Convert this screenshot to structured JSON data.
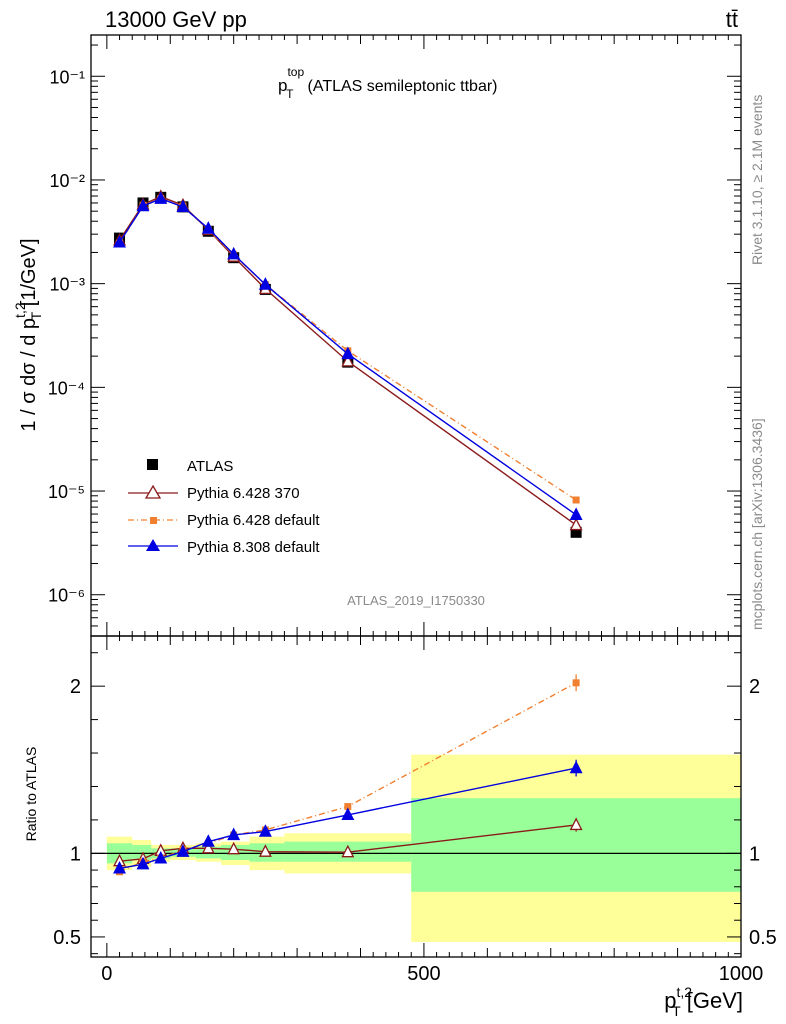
{
  "header": {
    "left": "13000 GeV pp",
    "right": "tt̄"
  },
  "side": {
    "rivet": "Rivet 3.1.10, ≥ 2.1M events",
    "mcplots": "mcplots.cern.ch [arXiv:1306.3436]"
  },
  "watermark": "ATLAS_2019_I1750330",
  "colors": {
    "atlas": "#000000",
    "p370": "#8b1a1a",
    "pdef": "#f08030",
    "p8": "#0000e0",
    "band_inner": "#99ff99",
    "band_outer": "#ffff99"
  },
  "chart_data": [
    {
      "type": "line",
      "title": "p_T^top (ATLAS semileptonic ttbar)",
      "title_main": "p",
      "title_sub": "T",
      "title_sup": "top",
      "title_rest": "(ATLAS semileptonic ttbar)",
      "ylabel": "1 / σ dσ / d p_T^{t,2} [1/GeV]",
      "ylabel_main": "1 / σ dσ / d p",
      "ylabel_sub": "T",
      "ylabel_sup": "t,2",
      "ylabel_rest": " [1/GeV]",
      "yscale": "log",
      "ylim": [
        4e-07,
        0.25
      ],
      "xlim": [
        -25,
        1000
      ],
      "ytick_labels": [
        "10⁻⁶",
        "10⁻⁵",
        "10⁻⁴",
        "10⁻³",
        "10⁻²",
        "10⁻¹"
      ],
      "ytick_values": [
        1e-06,
        1e-05,
        0.0001,
        0.001,
        0.01,
        0.1
      ],
      "x": [
        20,
        57,
        85,
        120,
        160,
        200,
        250,
        380,
        740
      ],
      "series": [
        {
          "name": "ATLAS",
          "marker": "square",
          "values": [
            0.00275,
            0.006,
            0.0068,
            0.0055,
            0.0032,
            0.00178,
            0.00088,
            0.000175,
            4e-06
          ]
        },
        {
          "name": "Pythia 6.428 370",
          "marker": "open-triangle",
          "values": [
            0.00262,
            0.0058,
            0.0069,
            0.0057,
            0.0033,
            0.00182,
            0.00089,
            0.000178,
            4.7e-06
          ]
        },
        {
          "name": "Pythia 6.428 default",
          "marker": "small-square",
          "values": [
            0.00245,
            0.0057,
            0.0066,
            0.0056,
            0.0033,
            0.0019,
            0.00098,
            0.000225,
            8.2e-06
          ]
        },
        {
          "name": "Pythia 8.308 default",
          "marker": "filled-triangle",
          "values": [
            0.0025,
            0.0056,
            0.0066,
            0.0055,
            0.0034,
            0.00192,
            0.00098,
            0.00021,
            5.9e-06
          ]
        }
      ],
      "legend_position": "lower-left",
      "legend": [
        "ATLAS",
        "Pythia 6.428 370",
        "Pythia 6.428 default",
        "Pythia 8.308 default"
      ]
    },
    {
      "type": "line",
      "ylabel": "Ratio to ATLAS",
      "xlabel": "p_T^{t,2} [GeV]",
      "xlabel_main": "p",
      "xlabel_sub": "T",
      "xlabel_sup": "t,2",
      "xlabel_rest": " [GeV]",
      "ylim": [
        0.38,
        2.3
      ],
      "xlim": [
        -25,
        1000
      ],
      "xtick_labels": [
        "0",
        "500",
        "1000"
      ],
      "xtick_values": [
        0,
        500,
        1000
      ],
      "ytick_labels": [
        "0.5",
        "1",
        "2"
      ],
      "ytick_values": [
        0.5,
        1,
        2
      ],
      "bins": [
        {
          "lo": 0,
          "hi": 40,
          "inner": [
            0.94,
            1.06
          ],
          "outer": [
            0.9,
            1.1
          ]
        },
        {
          "lo": 40,
          "hi": 70,
          "inner": [
            0.96,
            1.05
          ],
          "outer": [
            0.92,
            1.08
          ]
        },
        {
          "lo": 70,
          "hi": 100,
          "inner": [
            0.97,
            1.03
          ],
          "outer": [
            0.95,
            1.05
          ]
        },
        {
          "lo": 100,
          "hi": 140,
          "inner": [
            0.98,
            1.03
          ],
          "outer": [
            0.96,
            1.05
          ]
        },
        {
          "lo": 140,
          "hi": 180,
          "inner": [
            0.97,
            1.04
          ],
          "outer": [
            0.95,
            1.06
          ]
        },
        {
          "lo": 180,
          "hi": 225,
          "inner": [
            0.96,
            1.05
          ],
          "outer": [
            0.93,
            1.07
          ]
        },
        {
          "lo": 225,
          "hi": 280,
          "inner": [
            0.95,
            1.06
          ],
          "outer": [
            0.9,
            1.1
          ]
        },
        {
          "lo": 280,
          "hi": 480,
          "inner": [
            0.95,
            1.07
          ],
          "outer": [
            0.88,
            1.12
          ]
        },
        {
          "lo": 480,
          "hi": 1000,
          "inner": [
            0.77,
            1.33
          ],
          "outer": [
            0.47,
            1.59
          ]
        }
      ],
      "x": [
        20,
        57,
        85,
        120,
        160,
        200,
        250,
        380,
        740
      ],
      "series": [
        {
          "name": "Pythia 6.428 370",
          "values": [
            0.953,
            0.967,
            1.015,
            1.03,
            1.03,
            1.025,
            1.01,
            1.007,
            1.17
          ]
        },
        {
          "name": "Pythia 6.428 default",
          "values": [
            0.89,
            0.95,
            0.97,
            1.02,
            1.06,
            1.11,
            1.14,
            1.28,
            2.02
          ]
        },
        {
          "name": "Pythia 8.308 default",
          "values": [
            0.91,
            0.935,
            0.97,
            1.01,
            1.07,
            1.11,
            1.13,
            1.23,
            1.51
          ]
        }
      ],
      "error_bars_last": [
        0.04,
        0.05,
        0.05
      ]
    }
  ]
}
